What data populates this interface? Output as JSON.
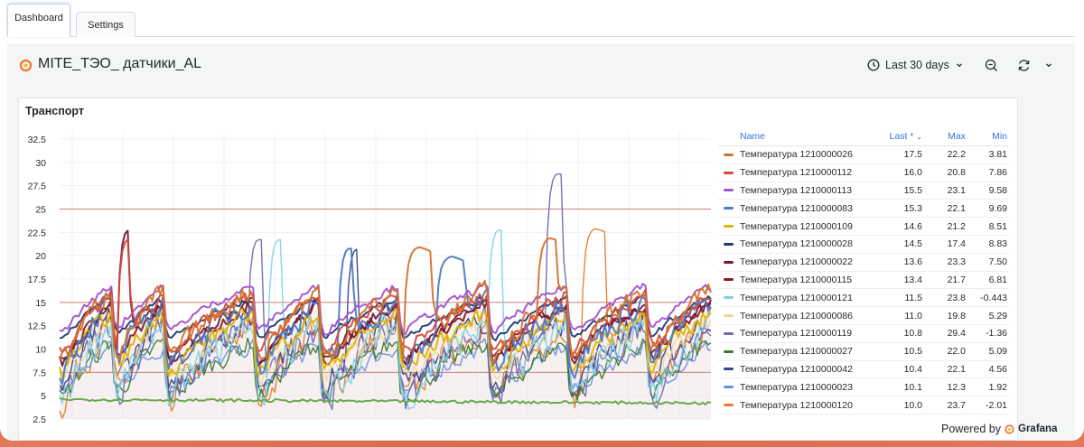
{
  "tabs": [
    {
      "label": "Dashboard",
      "active": true
    },
    {
      "label": "Settings",
      "active": false
    }
  ],
  "header": {
    "title": "MITE_ТЭО_ датчики_AL",
    "time_range": "Last 30 days",
    "icons": [
      "grafana-logo-icon",
      "clock-icon",
      "chevron-down-icon",
      "zoom-out-icon",
      "refresh-icon",
      "chevron-down-icon"
    ]
  },
  "panel": {
    "title": "Транспорт",
    "chart_data": {
      "type": "line",
      "y_ticks": [
        "32.5",
        "30",
        "27.5",
        "25",
        "22.5",
        "20",
        "17.5",
        "15",
        "12.5",
        "10",
        "7.5",
        "5",
        "2.5"
      ],
      "ylim": [
        2.5,
        32.5
      ],
      "threshold_lines": [
        25,
        15,
        7.5
      ],
      "grid": true,
      "legend_placement": "right-table"
    },
    "legend": {
      "headers": {
        "name": "Name",
        "last": "Last *",
        "max": "Max",
        "min": "Min"
      },
      "rows": [
        {
          "name": "Температура 1210000026",
          "last": "17.5",
          "max": "22.2",
          "min": "3.81",
          "color": "#d4722c"
        },
        {
          "name": "Температура 1210000112",
          "last": "16.0",
          "max": "20.8",
          "min": "7.86",
          "color": "#d44a3a"
        },
        {
          "name": "Температура 1210000113",
          "last": "15.5",
          "max": "23.1",
          "min": "9.58",
          "color": "#a352cc"
        },
        {
          "name": "Температура 1210000083",
          "last": "15.3",
          "max": "22.1",
          "min": "9.69",
          "color": "#4d7ac6"
        },
        {
          "name": "Температура 1210000109",
          "last": "14.6",
          "max": "21.2",
          "min": "8.51",
          "color": "#e0b400"
        },
        {
          "name": "Температура 1210000028",
          "last": "14.5",
          "max": "17.4",
          "min": "8.83",
          "color": "#1f3a7a"
        },
        {
          "name": "Температура 1210000022",
          "last": "13.6",
          "max": "23.3",
          "min": "7.50",
          "color": "#6e1a3e"
        },
        {
          "name": "Температура 1210000115",
          "last": "13.4",
          "max": "21.7",
          "min": "6.81",
          "color": "#8a1c1c"
        },
        {
          "name": "Температура 1210000121",
          "last": "11.5",
          "max": "23.8",
          "min": "-0.443",
          "color": "#7fd3e8"
        },
        {
          "name": "Температура 1210000086",
          "last": "11.0",
          "max": "19.8",
          "min": "5.29",
          "color": "#ecd99a"
        },
        {
          "name": "Температура 1210000119",
          "last": "10.8",
          "max": "29.4",
          "min": "-1.36",
          "color": "#6c6ab0"
        },
        {
          "name": "Температура 1210000027",
          "last": "10.5",
          "max": "22.0",
          "min": "5.09",
          "color": "#3a7a2a"
        },
        {
          "name": "Температура 1210000042",
          "last": "10.4",
          "max": "22.1",
          "min": "4.56",
          "color": "#3d3f8a"
        },
        {
          "name": "Температура 1210000023",
          "last": "10.1",
          "max": "12.3",
          "min": "1.92",
          "color": "#6b8fe0"
        },
        {
          "name": "Температура 1210000120",
          "last": "10.0",
          "max": "23.7",
          "min": "-2.01",
          "color": "#e87d2e"
        }
      ]
    }
  },
  "footer": {
    "powered_by": "Powered by",
    "brand": "Grafana"
  }
}
